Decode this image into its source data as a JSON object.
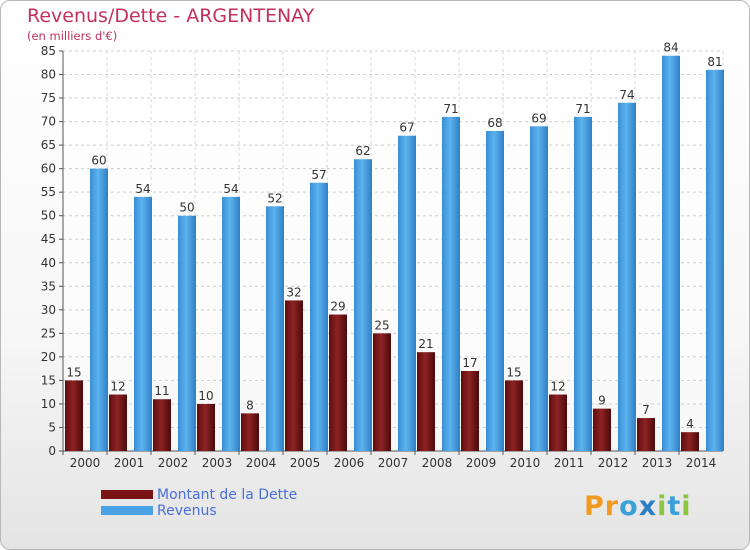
{
  "title": "Revenus/Dette - ARGENTENAY",
  "subtitle": "(en milliers d'€)",
  "colors": {
    "dette": "#7a1416",
    "revenus": "#4aa3e6",
    "title": "#c3305c",
    "legend_text": "#4a6fd8"
  },
  "legend": [
    {
      "label": "Montant de la Dette",
      "color": "#7a1416"
    },
    {
      "label": "Revenus",
      "color": "#4aa3e6"
    }
  ],
  "logo": {
    "text": "Proxiti",
    "letters": [
      "P",
      "r",
      "o",
      "x",
      "i",
      "t",
      "i"
    ]
  },
  "chart_data": {
    "type": "bar",
    "categories": [
      "2000",
      "2001",
      "2002",
      "2003",
      "2004",
      "2005",
      "2006",
      "2007",
      "2008",
      "2009",
      "2010",
      "2011",
      "2012",
      "2013",
      "2014"
    ],
    "series": [
      {
        "name": "Montant de la Dette",
        "values": [
          15,
          12,
          11,
          10,
          8,
          32,
          29,
          25,
          21,
          17,
          15,
          12,
          9,
          7,
          4
        ]
      },
      {
        "name": "Revenus",
        "values": [
          60,
          54,
          50,
          54,
          52,
          57,
          62,
          67,
          71,
          68,
          69,
          71,
          74,
          84,
          81
        ]
      }
    ],
    "ylim": [
      0,
      85
    ],
    "yticks": [
      0,
      5,
      10,
      15,
      20,
      25,
      30,
      35,
      40,
      45,
      50,
      55,
      60,
      65,
      70,
      75,
      80,
      85
    ],
    "grid": true,
    "legend_position": "bottom-left"
  }
}
